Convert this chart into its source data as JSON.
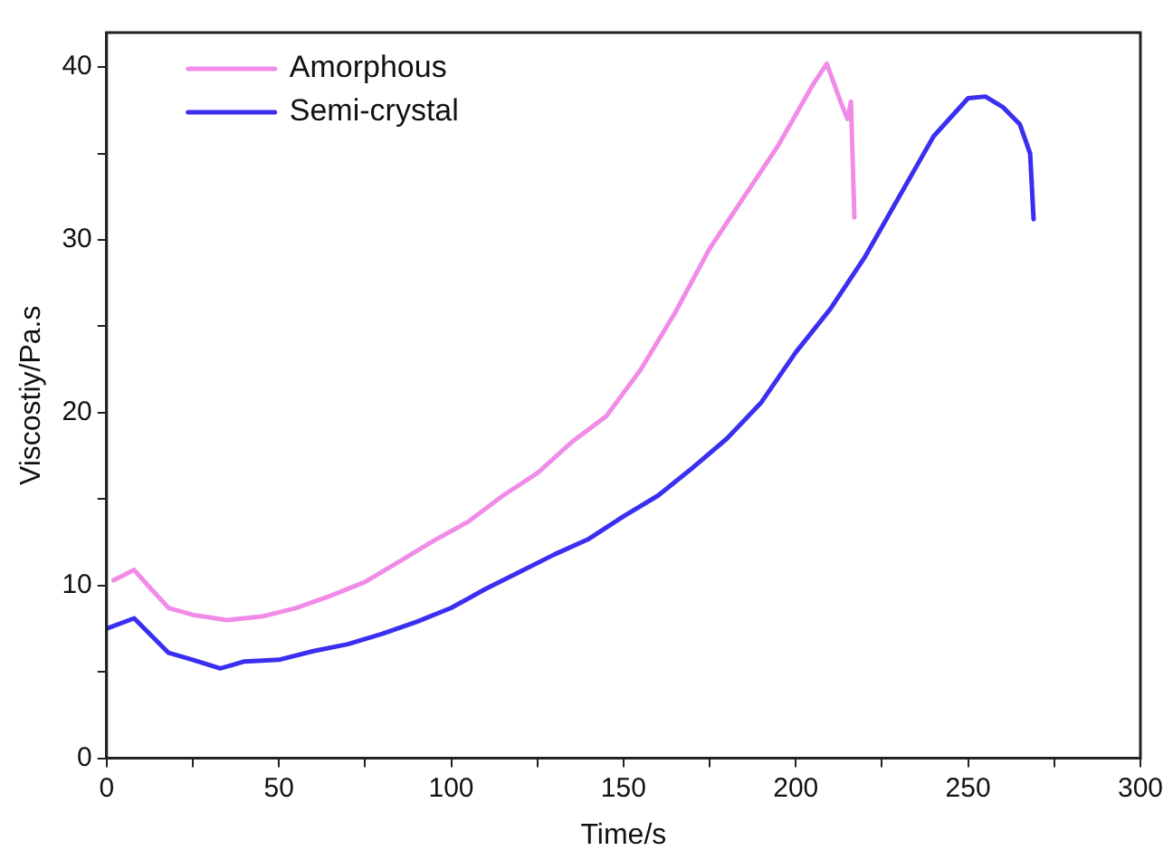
{
  "chart_data": {
    "type": "line",
    "xlabel": "Time/s",
    "ylabel": "Viscostiy/Pa.s",
    "xlim": [
      0,
      300
    ],
    "ylim": [
      0,
      42
    ],
    "xticks": [
      0,
      {
        "value": 25,
        "label": null
      },
      50,
      {
        "value": 75,
        "label": null
      },
      100,
      {
        "value": 125,
        "label": null
      },
      150,
      {
        "value": 175,
        "label": null
      },
      200,
      {
        "value": 225,
        "label": null
      },
      250,
      {
        "value": 275,
        "label": null
      },
      300
    ],
    "yticks": [
      0,
      {
        "value": 5,
        "label": null
      },
      10,
      {
        "value": 15,
        "label": null
      },
      20,
      {
        "value": 25,
        "label": null
      },
      30,
      {
        "value": 35,
        "label": null
      },
      40
    ],
    "grid": false,
    "legend": "top left",
    "marker": "none",
    "line_style": "solid",
    "series": [
      {
        "name": "Amorphous",
        "color": "#f08ce8",
        "x": [
          2,
          8,
          12,
          18,
          25,
          35,
          45,
          55,
          65,
          75,
          85,
          95,
          105,
          115,
          125,
          135,
          145,
          155,
          165,
          175,
          185,
          195,
          205,
          209,
          213,
          215,
          216,
          217
        ],
        "values": [
          10.3,
          10.9,
          10,
          8.7,
          8.3,
          8,
          8.2,
          8.7,
          9.4,
          10.2,
          11.4,
          12.6,
          13.7,
          15.2,
          16.5,
          18.3,
          19.8,
          22.5,
          25.8,
          29.5,
          32.5,
          35.5,
          39,
          40.2,
          38,
          37,
          38,
          31.3
        ]
      },
      {
        "name": "Semi-crystal",
        "color": "#3a2ff0",
        "x": [
          0,
          8,
          18,
          25,
          33,
          40,
          50,
          60,
          70,
          80,
          90,
          100,
          110,
          120,
          130,
          140,
          150,
          160,
          170,
          180,
          190,
          200,
          210,
          220,
          230,
          240,
          250,
          255,
          260,
          265,
          268,
          269
        ],
        "values": [
          7.5,
          8.1,
          6.1,
          5.7,
          5.2,
          5.6,
          5.7,
          6.2,
          6.6,
          7.2,
          7.9,
          8.7,
          9.8,
          10.8,
          11.8,
          12.7,
          14,
          15.2,
          16.8,
          18.5,
          20.6,
          23.5,
          26,
          29,
          32.5,
          36,
          38.2,
          38.3,
          37.7,
          36.7,
          35,
          31.2
        ]
      }
    ]
  }
}
